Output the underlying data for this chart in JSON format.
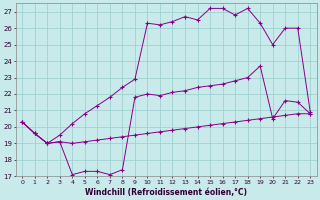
{
  "xlabel": "Windchill (Refroidissement éolien,°C)",
  "background_color": "#c8eaea",
  "line_color": "#880088",
  "grid_color": "#99cccc",
  "xlim_min": -0.5,
  "xlim_max": 23.5,
  "ylim_min": 17,
  "ylim_max": 27.5,
  "xticks": [
    0,
    1,
    2,
    3,
    4,
    5,
    6,
    7,
    8,
    9,
    10,
    11,
    12,
    13,
    14,
    15,
    16,
    17,
    18,
    19,
    20,
    21,
    22,
    23
  ],
  "yticks": [
    17,
    18,
    19,
    20,
    21,
    22,
    23,
    24,
    25,
    26,
    27
  ],
  "line_top_x": [
    0,
    1,
    2,
    3,
    4,
    5,
    6,
    7,
    8,
    9,
    10,
    11,
    12,
    13,
    14,
    15,
    16,
    17,
    18,
    19,
    20,
    21,
    22,
    23
  ],
  "line_top_y": [
    20.3,
    19.6,
    19.0,
    19.5,
    20.2,
    20.8,
    21.3,
    21.8,
    22.4,
    22.9,
    26.3,
    26.2,
    26.4,
    26.7,
    26.5,
    27.2,
    27.2,
    26.8,
    27.2,
    26.3,
    25.0,
    26.0,
    26.0,
    20.9
  ],
  "line_mid_x": [
    0,
    1,
    2,
    3,
    4,
    5,
    6,
    7,
    8,
    9,
    10,
    11,
    12,
    13,
    14,
    15,
    16,
    17,
    18,
    19,
    20,
    21,
    22,
    23
  ],
  "line_mid_y": [
    20.3,
    19.6,
    19.0,
    19.1,
    17.1,
    17.3,
    17.3,
    17.1,
    17.4,
    21.8,
    22.0,
    21.9,
    22.1,
    22.2,
    22.4,
    22.5,
    22.6,
    22.8,
    23.0,
    23.7,
    20.5,
    21.6,
    21.5,
    20.8
  ],
  "line_bot_x": [
    0,
    1,
    2,
    3,
    4,
    5,
    6,
    7,
    8,
    9,
    10,
    11,
    12,
    13,
    14,
    15,
    16,
    17,
    18,
    19,
    20,
    21,
    22,
    23
  ],
  "line_bot_y": [
    20.3,
    19.6,
    19.0,
    19.1,
    19.0,
    19.1,
    19.2,
    19.3,
    19.4,
    19.5,
    19.6,
    19.7,
    19.8,
    19.9,
    20.0,
    20.1,
    20.2,
    20.3,
    20.4,
    20.5,
    20.6,
    20.7,
    20.8,
    20.8
  ]
}
